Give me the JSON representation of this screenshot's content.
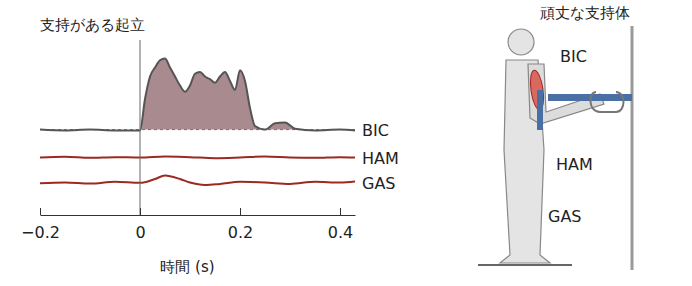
{
  "chart_data": [
    {
      "type": "line",
      "title": "支持がある起立",
      "x": [
        -0.2,
        -0.15,
        -0.1,
        -0.05,
        0,
        0.01,
        0.02,
        0.03,
        0.04,
        0.05,
        0.06,
        0.07,
        0.08,
        0.09,
        0.1,
        0.11,
        0.12,
        0.13,
        0.14,
        0.15,
        0.16,
        0.17,
        0.18,
        0.19,
        0.2,
        0.21,
        0.22,
        0.23,
        0.25,
        0.27,
        0.29,
        0.31,
        0.35,
        0.4,
        0.43
      ],
      "series": [
        {
          "name": "BIC",
          "color": "#555555",
          "values": [
            0.6,
            0.5,
            0.6,
            0.5,
            0.5,
            4,
            6.5,
            7.5,
            8.3,
            8.5,
            7.5,
            6.5,
            5.5,
            4.8,
            5.5,
            6.8,
            7.0,
            6.5,
            6.2,
            5.8,
            6.5,
            7.0,
            6.0,
            5.0,
            7.2,
            6.0,
            3.0,
            1.0,
            0.6,
            1.3,
            1.4,
            0.7,
            0.5,
            0.6,
            0.5
          ]
        }
      ],
      "xlim": [
        -0.2,
        0.43
      ],
      "ylim": [
        0,
        10
      ],
      "tick_labels": false
    },
    {
      "type": "line",
      "x": [
        -0.2,
        -0.15,
        -0.1,
        -0.05,
        0,
        0.05,
        0.1,
        0.15,
        0.2,
        0.25,
        0.3,
        0.35,
        0.4,
        0.43
      ],
      "series": [
        {
          "name": "HAM",
          "color": "#9b2a22",
          "values": [
            5,
            5.2,
            4.9,
            5.1,
            5,
            5.3,
            5.1,
            4.8,
            5.0,
            5.3,
            5.0,
            4.9,
            5.1,
            5.0
          ]
        }
      ],
      "xlim": [
        -0.2,
        0.43
      ],
      "ylim": [
        0,
        10
      ],
      "tick_labels": false
    },
    {
      "type": "line",
      "x_label": "時間 (s)",
      "x": [
        -0.2,
        -0.15,
        -0.1,
        -0.05,
        0,
        0.03,
        0.05,
        0.08,
        0.1,
        0.13,
        0.16,
        0.2,
        0.25,
        0.3,
        0.35,
        0.4,
        0.43
      ],
      "series": [
        {
          "name": "GAS",
          "color": "#9b2a22",
          "values": [
            4.8,
            5.0,
            4.7,
            5.2,
            4.9,
            6.0,
            7.0,
            6.0,
            5.0,
            4.3,
            4.6,
            5.2,
            5.0,
            4.6,
            5.2,
            5.0,
            5.3
          ]
        }
      ],
      "xlim": [
        -0.2,
        0.43
      ],
      "ylim": [
        0,
        10
      ],
      "xticks": [
        {
          "value": -0.2,
          "label": "−0.2"
        },
        0,
        0.2,
        0.4
      ],
      "tick_labels": "x"
    }
  ],
  "diagram": {
    "labels": [
      "頑丈な支持体",
      "BIC",
      "HAM",
      "GAS"
    ]
  }
}
